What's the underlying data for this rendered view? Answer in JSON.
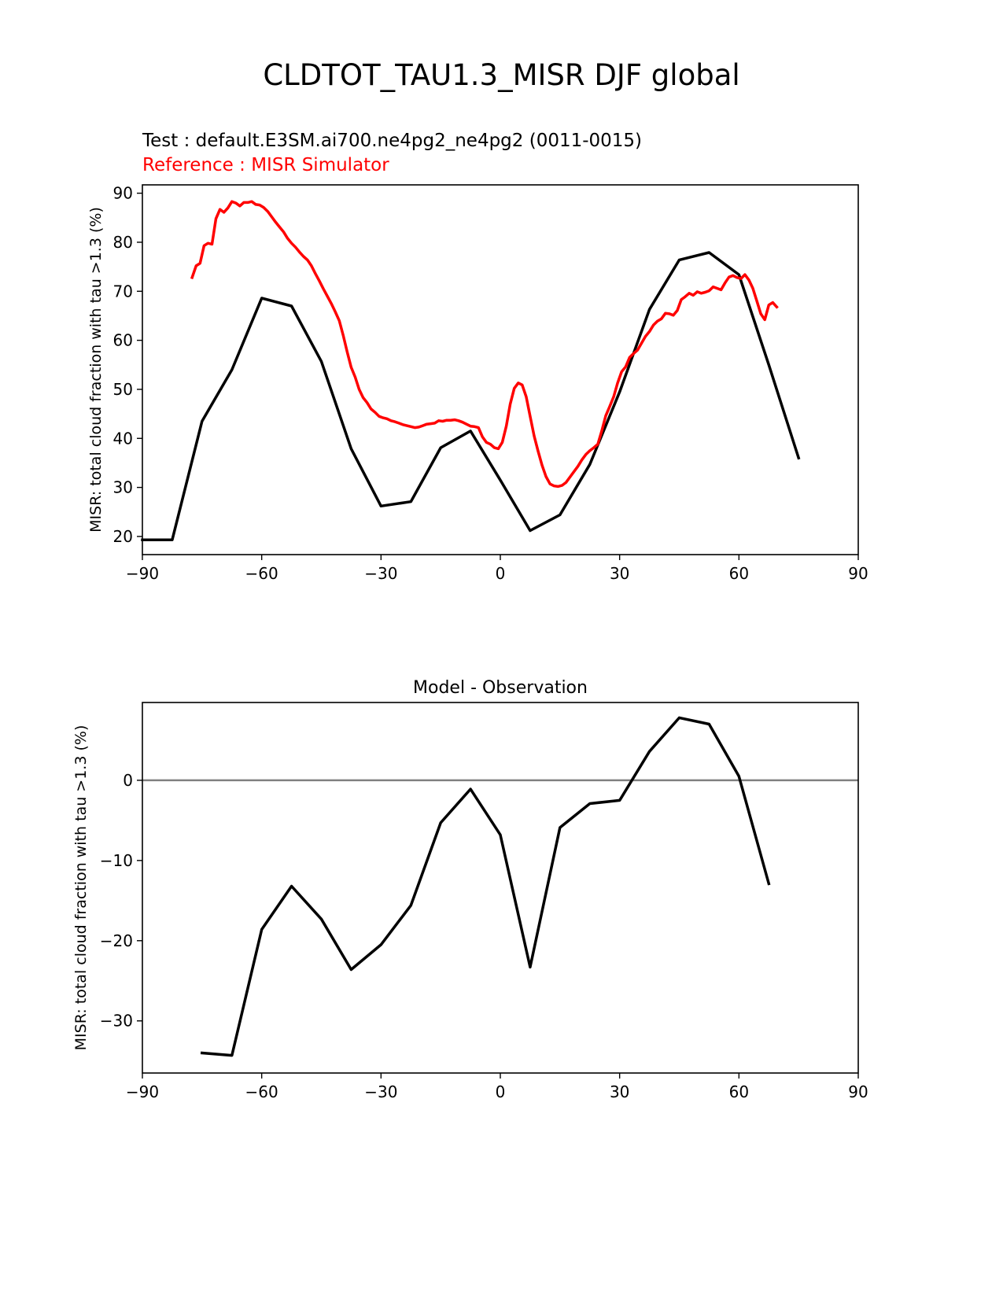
{
  "figure": {
    "title": "CLDTOT_TAU1.3_MISR DJF global"
  },
  "chart_data": [
    {
      "type": "line",
      "title_left": "Test : default.E3SM.ai700.ne4pg2_ne4pg2 (0011-0015)",
      "title_left_2": "Reference : MISR Simulator",
      "xlabel": "",
      "ylabel": "MISR: total cloud fraction with tau >1.3 (%)",
      "xlim": [
        -90,
        90
      ],
      "ylim": [
        16.3,
        91.7
      ],
      "xticks": [
        -90,
        -60,
        -30,
        0,
        30,
        60,
        90
      ],
      "xtick_labels": [
        "−90",
        "−60",
        "−30",
        "0",
        "30",
        "60",
        "90"
      ],
      "yticks": [
        20,
        30,
        40,
        50,
        60,
        70,
        80,
        90
      ],
      "ytick_labels": [
        "20",
        "30",
        "40",
        "50",
        "60",
        "70",
        "80",
        "90"
      ],
      "grid": false,
      "series": [
        {
          "role": "test",
          "color": "#000000",
          "x": [
            -90,
            -82.5,
            -75,
            -67.5,
            -60,
            -52.5,
            -45,
            -37.5,
            -30,
            -22.5,
            -15,
            -7.5,
            0,
            7.5,
            15,
            22.5,
            30,
            37.5,
            45,
            52.5,
            60,
            67.5,
            75
          ],
          "y": [
            19.3,
            19.3,
            43.5,
            54,
            68.6,
            67,
            55.7,
            37.9,
            26.2,
            27.1,
            38.1,
            41.5,
            31.5,
            21.2,
            24.4,
            34.7,
            49.5,
            66.3,
            76.4,
            77.9,
            73.4,
            55,
            36
          ]
        },
        {
          "role": "reference",
          "color": "#ff0000",
          "x": [
            -77.5,
            -76.5,
            -75.5,
            -74.5,
            -73.5,
            -72.5,
            -71.5,
            -70.5,
            -69.5,
            -68.5,
            -67.5,
            -66.5,
            -65.5,
            -64.5,
            -63.5,
            -62.5,
            -61.5,
            -60.5,
            -59.5,
            -58.5,
            -57.5,
            -56.5,
            -55.5,
            -54.5,
            -53.5,
            -52.5,
            -51.5,
            -50.5,
            -49.5,
            -48.5,
            -47.5,
            -46.5,
            -45.5,
            -44.5,
            -43.5,
            -42.5,
            -41.5,
            -40.5,
            -39.5,
            -38.5,
            -37.5,
            -36.5,
            -35.5,
            -34.5,
            -33.5,
            -32.5,
            -31.5,
            -30.5,
            -29.5,
            -28.5,
            -27.5,
            -26.5,
            -25.5,
            -24.5,
            -23.5,
            -22.5,
            -21.5,
            -20.5,
            -19.5,
            -18.5,
            -17.5,
            -16.5,
            -15.5,
            -14.5,
            -13.5,
            -12.5,
            -11.5,
            -10.5,
            -9.5,
            -8.5,
            -7.5,
            -6.5,
            -5.5,
            -4.5,
            -3.5,
            -2.5,
            -1.5,
            -0.5,
            0.5,
            1.5,
            2.5,
            3.5,
            4.5,
            5.5,
            6.5,
            7.5,
            8.5,
            9.5,
            10.5,
            11.5,
            12.5,
            13.5,
            14.5,
            15.5,
            16.5,
            17.5,
            18.5,
            19.5,
            20.5,
            21.5,
            22.5,
            23.5,
            24.5,
            25.5,
            26.5,
            27.5,
            28.5,
            29.5,
            30.5,
            31.5,
            32.5,
            33.5,
            34.5,
            35.5,
            36.5,
            37.5,
            38.5,
            39.5,
            40.5,
            41.5,
            42.5,
            43.5,
            44.5,
            45.5,
            46.5,
            47.5,
            48.5,
            49.5,
            50.5,
            51.5,
            52.5,
            53.5,
            54.5,
            55.5,
            56.5,
            57.5,
            58.5,
            59.5,
            60.5,
            61.5,
            62.5,
            63.5,
            64.5,
            65.5,
            66.5,
            67.5,
            68.5,
            69.5
          ],
          "y": [
            72.8,
            75.2,
            75.7,
            79.3,
            79.8,
            79.6,
            84.8,
            86.7,
            86.1,
            87,
            88.3,
            88,
            87.4,
            88.1,
            88.1,
            88.3,
            87.7,
            87.6,
            87.1,
            86.3,
            85.2,
            84.1,
            83.1,
            82.1,
            80.8,
            79.8,
            79,
            78,
            77.1,
            76.4,
            75.2,
            73.6,
            72.1,
            70.5,
            69,
            67.5,
            65.8,
            64,
            61,
            57.6,
            54.5,
            52.5,
            50,
            48.3,
            47.3,
            46,
            45.3,
            44.5,
            44.2,
            44,
            43.6,
            43.4,
            43.1,
            42.8,
            42.6,
            42.4,
            42.2,
            42.3,
            42.6,
            42.9,
            43,
            43.1,
            43.6,
            43.5,
            43.7,
            43.7,
            43.8,
            43.6,
            43.3,
            42.9,
            42.5,
            42.4,
            42.2,
            40.3,
            39.2,
            38.8,
            38.1,
            37.9,
            39.2,
            42.5,
            47,
            50.2,
            51.3,
            50.9,
            48.5,
            44.5,
            40.5,
            37.4,
            34.5,
            32.2,
            30.7,
            30.3,
            30.2,
            30.4,
            31,
            32.1,
            33.2,
            34.3,
            35.6,
            36.7,
            37.5,
            38.1,
            38.8,
            41.5,
            44.6,
            46.5,
            48.5,
            51.3,
            53.6,
            54.6,
            56.5,
            57.3,
            58,
            59.4,
            60.8,
            61.8,
            63.1,
            63.9,
            64.4,
            65.5,
            65.4,
            65.1,
            66.1,
            68.3,
            68.9,
            69.6,
            69.2,
            69.9,
            69.6,
            69.8,
            70.1,
            70.9,
            70.6,
            70.3,
            71.7,
            72.9,
            73.2,
            72.8,
            72.6,
            73.4,
            72.3,
            70.6,
            68,
            65.4,
            64.2,
            67.2,
            67.7,
            66.8
          ]
        }
      ]
    },
    {
      "type": "line",
      "title": "Model - Observation",
      "xlabel": "",
      "ylabel": "MISR: total cloud fraction with tau >1.3 (%)",
      "xlim": [
        -90,
        90
      ],
      "ylim": [
        -36.5,
        9.7
      ],
      "xticks": [
        -90,
        -60,
        -30,
        0,
        30,
        60,
        90
      ],
      "xtick_labels": [
        "−90",
        "−60",
        "−30",
        "0",
        "30",
        "60",
        "90"
      ],
      "yticks": [
        -30,
        -20,
        -10,
        0
      ],
      "ytick_labels": [
        "−30",
        "−20",
        "−10",
        "0"
      ],
      "grid": false,
      "zero_line": {
        "y": 0,
        "color": "#808080"
      },
      "series": [
        {
          "role": "difference",
          "color": "#000000",
          "x": [
            -75,
            -67.5,
            -60,
            -52.5,
            -45,
            -37.5,
            -30,
            -22.5,
            -15,
            -7.5,
            0,
            7.5,
            15,
            22.5,
            30,
            37.5,
            45,
            52.5,
            60,
            67.5
          ],
          "y": [
            -34,
            -34.3,
            -18.6,
            -13.2,
            -17.3,
            -23.6,
            -20.5,
            -15.6,
            -5.3,
            -1.1,
            -6.8,
            -23.3,
            -5.9,
            -2.9,
            -2.5,
            3.6,
            7.8,
            7,
            0.5,
            -12.9
          ]
        }
      ]
    }
  ]
}
